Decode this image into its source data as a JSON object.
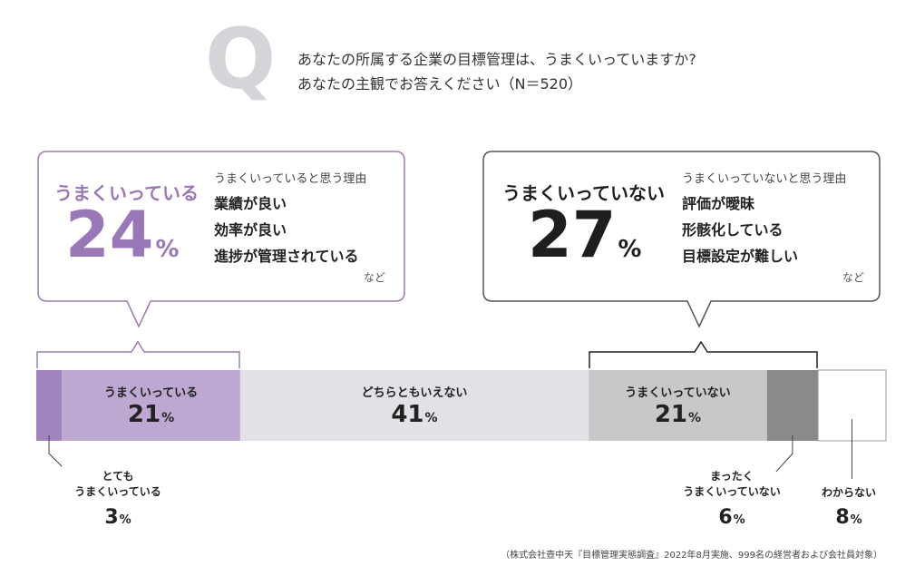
{
  "question": {
    "mark": "Q",
    "line1": "あなたの所属する企業の目標管理は、うまくいっていますか?",
    "line2": "あなたの主観でお答えください（N＝520）"
  },
  "left_box": {
    "label": "うまくいっている",
    "value": "24",
    "unit": "%",
    "reasons_title": "うまくいっていると思う理由",
    "reasons": [
      "業績が良い",
      "効率が良い",
      "進捗が管理されている"
    ],
    "etc": "など"
  },
  "right_box": {
    "label": "うまくいっていない",
    "value": "27",
    "unit": "%",
    "reasons_title": "うまくいっていないと思う理由",
    "reasons": [
      "評価が曖昧",
      "形骸化している",
      "目標設定が難しい"
    ],
    "etc": "など"
  },
  "chart_data": {
    "type": "bar",
    "orientation": "horizontal-stacked",
    "unit": "%",
    "segments": [
      {
        "label": "とても うまくいっている",
        "label_lines": [
          "とても",
          "うまくいっている"
        ],
        "value": 3,
        "color": "#a184bd",
        "label_position": "below"
      },
      {
        "label": "うまくいっている",
        "value": 21,
        "color": "#bca8d0",
        "label_position": "inside"
      },
      {
        "label": "どちらともいえない",
        "value": 41,
        "color": "#e3e0e6",
        "label_position": "inside"
      },
      {
        "label": "うまくいっていない",
        "value": 21,
        "color": "#c8c8c8",
        "label_position": "inside"
      },
      {
        "label": "まったく うまくいっていない",
        "label_lines": [
          "まったく",
          "うまくいっていない"
        ],
        "value": 6,
        "color": "#8a8a8a",
        "label_position": "below"
      },
      {
        "label": "わからない",
        "value": 8,
        "color": "#ffffff",
        "label_position": "below"
      }
    ]
  },
  "colors": {
    "purple": "#9b7bb5",
    "purple_text": "#9a78b8",
    "dark_text": "#1e1e1e",
    "outline_dark": "#555555"
  },
  "source": "（株式会社壺中天『目標管理実態調査』2022年8月実施、999名の経営者および会社員対象）"
}
